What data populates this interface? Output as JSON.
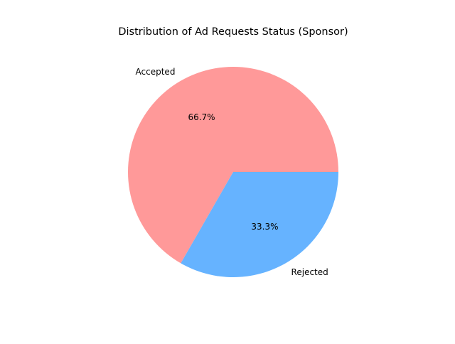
{
  "chart_data": {
    "type": "pie",
    "title": "Distribution of Ad Requests Status (Sponsor)",
    "categories": [
      "Accepted",
      "Rejected"
    ],
    "values": [
      66.7,
      33.3
    ],
    "percent_labels": [
      "66.7%",
      "33.3%"
    ],
    "colors": [
      "#ff9999",
      "#66b3ff"
    ],
    "start_angle_deg": 0,
    "direction": "counterclockwise"
  }
}
